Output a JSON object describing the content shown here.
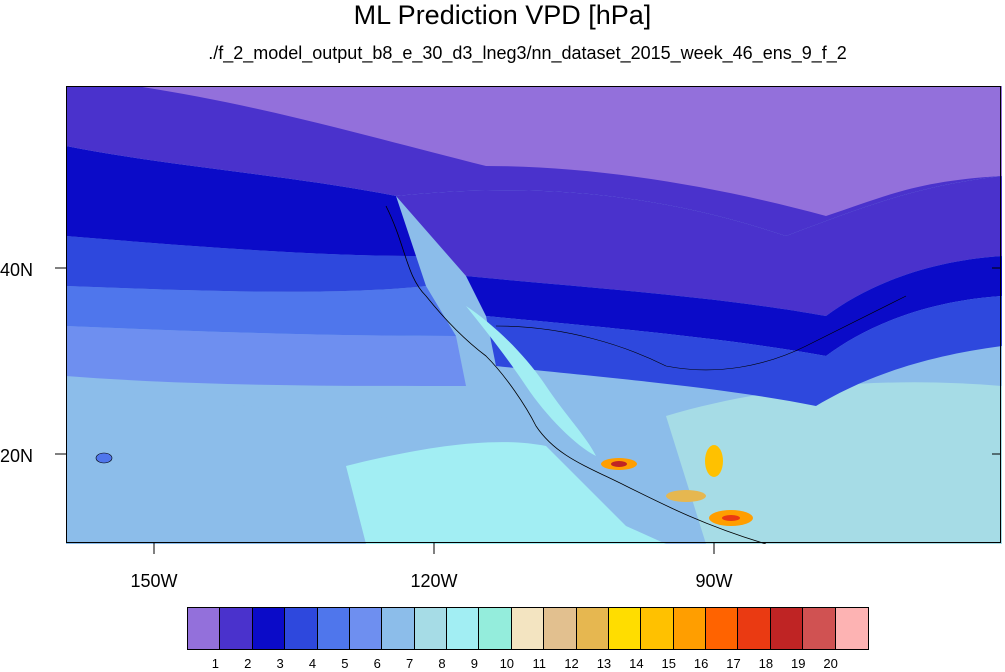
{
  "title": "ML Prediction VPD [hPa]",
  "subtitle": "./f_2_model_output_b8_e_30_d3_lneg3/nn_dataset_2015_week_46_ens_9_f_2",
  "axes": {
    "lon_labels": [
      "150W",
      "120W",
      "90W"
    ],
    "lat_labels": [
      "40N",
      "20N"
    ]
  },
  "colorbar": {
    "colors": [
      "#9370DB",
      "#4A32CC",
      "#0B0BC8",
      "#2E48DD",
      "#4F76EC",
      "#6E8FF0",
      "#8CBDEA",
      "#A6DCE6",
      "#A2EEF3",
      "#94EDDC",
      "#F3E4C1",
      "#E2C08F",
      "#E6B750",
      "#FFDD00",
      "#FFC100",
      "#FF9E00",
      "#FF6300",
      "#EA3A12",
      "#BF2424",
      "#D05252",
      "#FDB3B3"
    ],
    "labels": [
      "1",
      "2",
      "3",
      "4",
      "5",
      "6",
      "7",
      "8",
      "9",
      "10",
      "11",
      "12",
      "13",
      "14",
      "15",
      "16",
      "17",
      "18",
      "19",
      "20"
    ]
  },
  "map": {
    "region": {
      "lon_range": [
        -160,
        -63
      ],
      "lat_range": [
        11,
        59
      ]
    }
  }
}
